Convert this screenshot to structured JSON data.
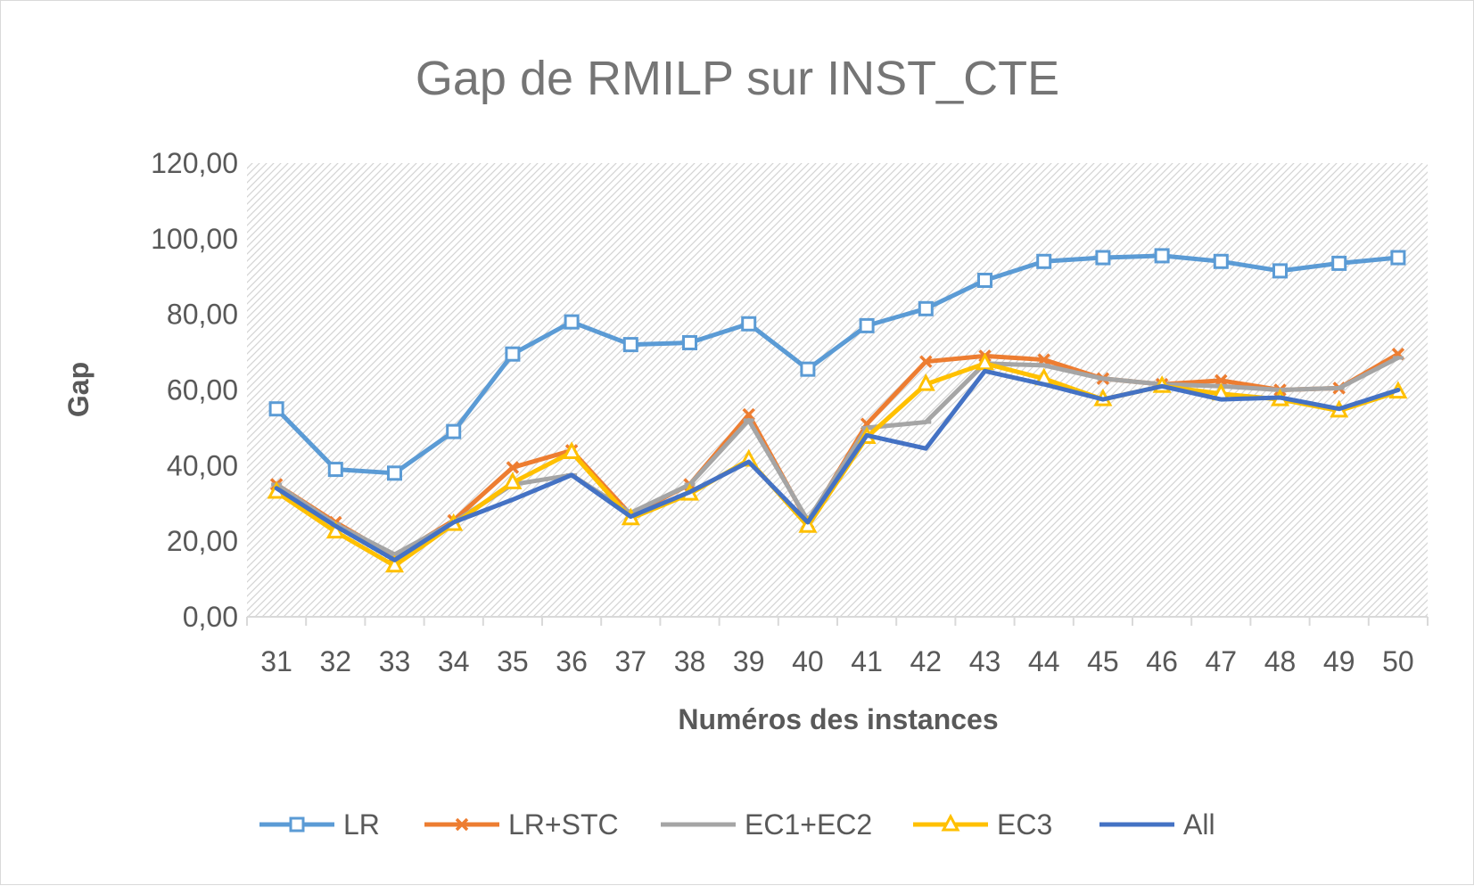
{
  "chart_data": {
    "type": "line",
    "title": "Gap de RMILP sur INST_CTE",
    "xlabel": "Numéros des instances",
    "ylabel": "Gap",
    "ylim": [
      0,
      120
    ],
    "ytick_values": [
      0,
      20,
      40,
      60,
      80,
      100,
      120
    ],
    "ytick_labels": [
      "0,00",
      "20,00",
      "40,00",
      "60,00",
      "80,00",
      "100,00",
      "120,00"
    ],
    "grid": false,
    "plot_area_fill": "hatched",
    "legend_position": "bottom",
    "categories": [
      "31",
      "32",
      "33",
      "34",
      "35",
      "36",
      "37",
      "38",
      "39",
      "40",
      "41",
      "42",
      "43",
      "44",
      "45",
      "46",
      "47",
      "48",
      "49",
      "50"
    ],
    "series": [
      {
        "name": "LR",
        "color": "#5b9bd5",
        "marker": "square-open",
        "values": [
          55,
          39,
          38,
          49,
          69.5,
          78,
          72,
          72.5,
          77.5,
          65.5,
          77,
          81.5,
          89,
          94,
          95,
          95.5,
          94,
          91.5,
          93.5,
          95
        ]
      },
      {
        "name": "LR+STC",
        "color": "#ed7d31",
        "marker": "x",
        "values": [
          35,
          25,
          16,
          25.5,
          39.5,
          44,
          27,
          35,
          53.5,
          25,
          51,
          67.5,
          69,
          68,
          63,
          61.5,
          62.5,
          60,
          60.5,
          69.5
        ]
      },
      {
        "name": "EC1+EC2",
        "color": "#a5a5a5",
        "marker": "dash",
        "values": [
          35,
          24.5,
          16.5,
          25,
          35,
          37.5,
          27.5,
          35,
          52,
          25.5,
          50,
          51.5,
          67,
          66.5,
          63,
          61.5,
          61,
          60,
          60.5,
          68.5
        ]
      },
      {
        "name": "EC3",
        "color": "#ffc000",
        "marker": "triangle-open",
        "values": [
          33,
          22.5,
          13.5,
          24.5,
          35.5,
          43.5,
          26,
          32.5,
          41.5,
          24,
          47.5,
          61.5,
          67,
          63,
          57.5,
          61,
          59,
          57.5,
          54.5,
          59.5
        ]
      },
      {
        "name": "All",
        "color": "#4472c4",
        "marker": "none",
        "values": [
          34,
          24,
          15,
          25,
          31,
          37.5,
          26.5,
          33,
          41,
          25,
          48,
          44.5,
          65,
          61.5,
          57.5,
          61,
          57.5,
          58,
          55,
          60
        ]
      }
    ]
  }
}
